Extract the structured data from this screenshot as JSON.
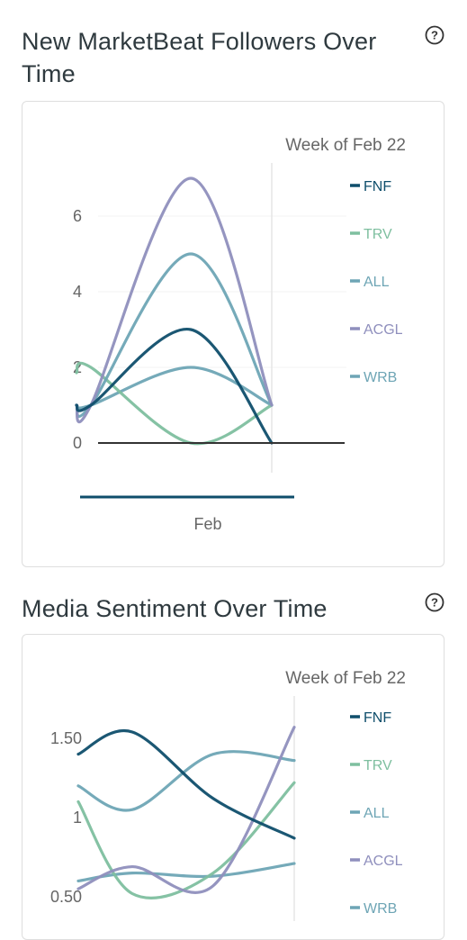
{
  "sections": [
    {
      "title": "New MarketBeat Followers Over Time",
      "help_icon": "question-circle-icon"
    },
    {
      "title": "Media Sentiment Over Time",
      "help_icon": "question-circle-icon"
    }
  ],
  "chart_data": [
    {
      "type": "line",
      "title": "New MarketBeat Followers Over Time",
      "week_label": "Week of Feb 22",
      "x_tick_labels": [
        "Feb"
      ],
      "x": [
        "",
        "",
        ""
      ],
      "y_ticks": [
        "0",
        "2",
        "4",
        "6"
      ],
      "ylim": [
        0,
        7
      ],
      "legend_position": "right",
      "series": [
        {
          "name": "FNF",
          "color": "#0f4e6b",
          "values": [
            1,
            3,
            0
          ]
        },
        {
          "name": "TRV",
          "color": "#7ebf9f",
          "values": [
            2,
            0,
            1
          ]
        },
        {
          "name": "ALL",
          "color": "#6ea5b5",
          "values": [
            1,
            5,
            1
          ]
        },
        {
          "name": "ACGL",
          "color": "#8f8fbd",
          "values": [
            1,
            7,
            1
          ]
        },
        {
          "name": "WRB",
          "color": "#6ea5b5",
          "values": [
            1,
            2,
            1
          ]
        }
      ]
    },
    {
      "type": "line",
      "title": "Media Sentiment Over Time",
      "week_label": "Week of Feb 22",
      "y_ticks": [
        "0.50",
        "1",
        "1.50"
      ],
      "ylim": [
        0.5,
        1.6
      ],
      "legend_position": "right",
      "series": [
        {
          "name": "FNF",
          "color": "#0f4e6b",
          "values": [
            1.4,
            1.54,
            1.12,
            0.87
          ]
        },
        {
          "name": "TRV",
          "color": "#7ebf9f",
          "values": [
            1.1,
            0.52,
            0.65,
            1.22
          ]
        },
        {
          "name": "ALL",
          "color": "#6ea5b5",
          "values": [
            1.2,
            1.05,
            1.4,
            1.36
          ]
        },
        {
          "name": "ACGL",
          "color": "#8f8fbd",
          "values": [
            0.55,
            0.69,
            0.57,
            1.57
          ]
        },
        {
          "name": "WRB",
          "color": "#6ea5b5",
          "values": [
            0.6,
            0.65,
            0.63,
            0.71
          ]
        }
      ]
    }
  ]
}
